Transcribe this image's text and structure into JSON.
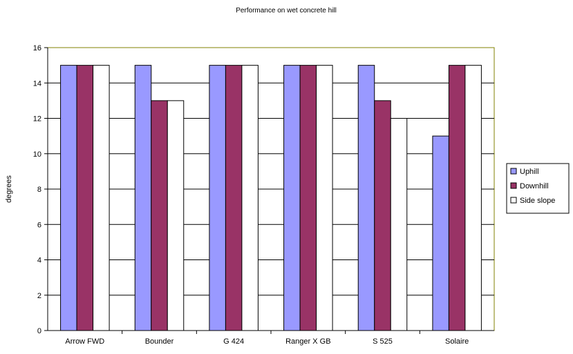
{
  "chart_data": {
    "type": "bar",
    "title": "Performance on wet concrete hill",
    "xlabel": "",
    "ylabel": "degrees",
    "ylim": [
      0,
      16
    ],
    "yticks": [
      0,
      2,
      4,
      6,
      8,
      10,
      12,
      14,
      16
    ],
    "grid": true,
    "legend_position": "right",
    "categories": [
      "Arrow FWD",
      "Bounder",
      "G 424",
      "Ranger X GB",
      "S 525",
      "Solaire"
    ],
    "series": [
      {
        "name": "Uphill",
        "color": "#9999ff",
        "values": [
          15,
          15,
          15,
          15,
          15,
          11
        ]
      },
      {
        "name": "Downhill",
        "color": "#993366",
        "values": [
          15,
          13,
          15,
          15,
          13,
          15
        ]
      },
      {
        "name": "Side slope",
        "color": "#ffffff",
        "values": [
          15,
          13,
          15,
          15,
          12,
          15
        ]
      }
    ]
  }
}
